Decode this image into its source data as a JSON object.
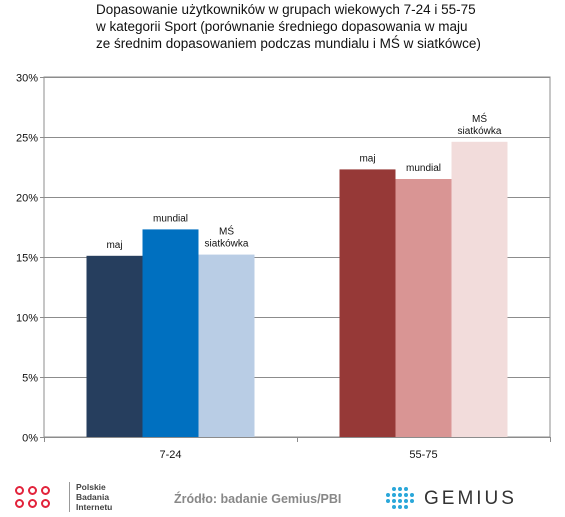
{
  "chart_data": {
    "type": "bar",
    "title_lines": [
      "Dopasowanie użytkowników w grupach wiekowych 7-24 i 55-75",
      "w kategorii Sport (porównanie średniego dopasowania w maju",
      "ze średnim dopasowaniem podczas mundialu i MŚ w siatkówce)"
    ],
    "categories": [
      "7-24",
      "55-75"
    ],
    "series": [
      {
        "name": "maj",
        "values": [
          15.1,
          22.3
        ],
        "colors": [
          "#263e5e",
          "#963937"
        ],
        "labels": [
          [
            "maj"
          ],
          [
            "maj"
          ]
        ]
      },
      {
        "name": "mundial",
        "values": [
          17.3,
          21.5
        ],
        "colors": [
          "#0070c0",
          "#d99594"
        ],
        "labels": [
          [
            "mundial"
          ],
          [
            "mundial"
          ]
        ]
      },
      {
        "name": "MŚ siatkówka",
        "values": [
          15.2,
          24.6
        ],
        "colors": [
          "#b9cde5",
          "#f2dcdb"
        ],
        "labels": [
          [
            "MŚ",
            "siatkówka"
          ],
          [
            "MŚ",
            "siatkówka"
          ]
        ]
      }
    ],
    "ylim": [
      0,
      30
    ],
    "yticks": [
      0,
      5,
      10,
      15,
      20,
      25,
      30
    ],
    "ytick_labels": [
      "0%",
      "5%",
      "10%",
      "15%",
      "20%",
      "25%",
      "30%"
    ],
    "grid": true,
    "xlabel": "",
    "ylabel": ""
  },
  "footer": {
    "logo_lines": [
      "Polskie",
      "Badania",
      "Internetu"
    ],
    "source": "Źródło: badanie Gemius/PBI",
    "gemius": "GEMIUS",
    "brand_color": "#e2233b",
    "gemius_color": "#2aa7d9"
  }
}
